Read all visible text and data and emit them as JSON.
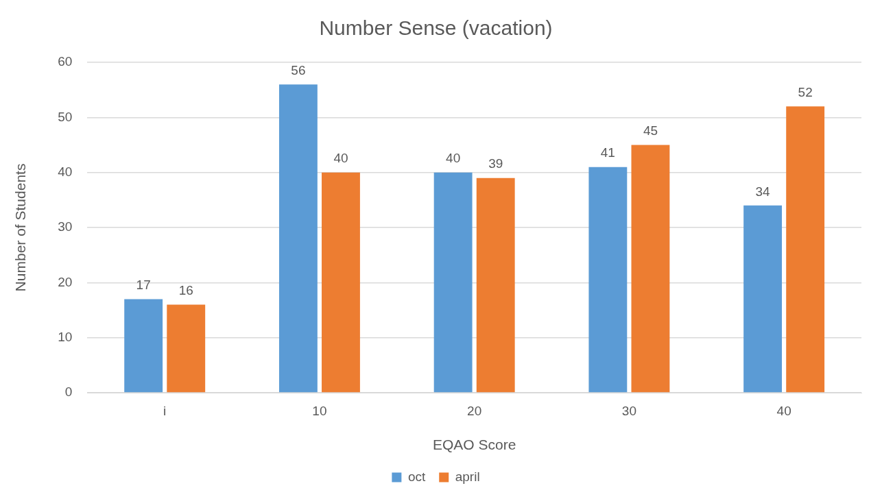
{
  "chart_data": {
    "type": "bar",
    "title": "Number Sense (vacation)",
    "xlabel": "EQAO Score",
    "ylabel": "Number of Students",
    "categories": [
      "i",
      "10",
      "20",
      "30",
      "40"
    ],
    "series": [
      {
        "name": "oct",
        "color": "#5b9bd5",
        "values": [
          17,
          56,
          40,
          41,
          34
        ]
      },
      {
        "name": "april",
        "color": "#ed7d31",
        "values": [
          16,
          40,
          39,
          45,
          52
        ]
      }
    ],
    "ylim": [
      0,
      60
    ],
    "yticks": [
      0,
      10,
      20,
      30,
      40,
      50,
      60
    ],
    "grid": "y",
    "legend": "bottom",
    "data_labels": true
  }
}
